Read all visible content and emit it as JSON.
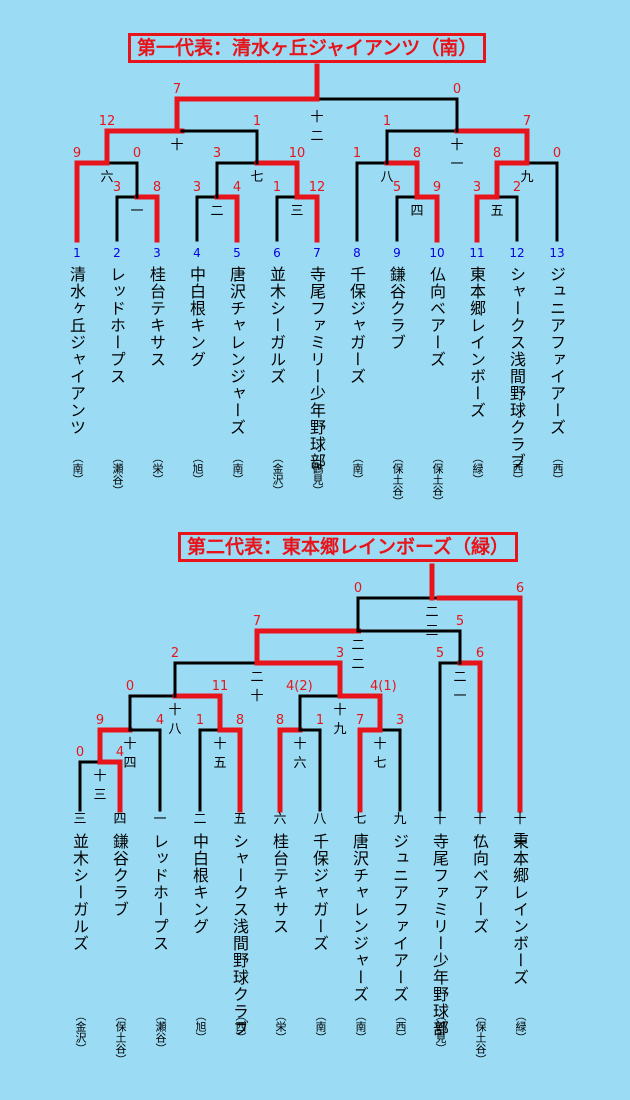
{
  "section1": {
    "title": "第一代表：清水ヶ丘ジャイアンツ（南）",
    "teams": [
      {
        "num": "1",
        "name": "清水ヶ丘ジャイアンツ",
        "dist": "（南）"
      },
      {
        "num": "2",
        "name": "レッドホープス",
        "dist": "（瀬谷）"
      },
      {
        "num": "3",
        "name": "桂台テキサス",
        "dist": "（栄）"
      },
      {
        "num": "4",
        "name": "中白根キング",
        "dist": "（旭）"
      },
      {
        "num": "5",
        "name": "唐沢チャレンジャーズ",
        "dist": "（南）"
      },
      {
        "num": "6",
        "name": "並木シーガルズ",
        "dist": "（金沢）"
      },
      {
        "num": "7",
        "name": "寺尾ファミリー少年野球部",
        "dist": "（鶴見）"
      },
      {
        "num": "8",
        "name": "千保ジャガーズ",
        "dist": "（南）"
      },
      {
        "num": "9",
        "name": "鎌谷クラブ",
        "dist": "（保土谷）"
      },
      {
        "num": "10",
        "name": "仏向ベアーズ",
        "dist": "（保土谷）"
      },
      {
        "num": "11",
        "name": "東本郷レインボーズ",
        "dist": "（緑）"
      },
      {
        "num": "12",
        "name": "シャークス浅間野球クラブ",
        "dist": "（西）"
      },
      {
        "num": "13",
        "name": "ジュニアファイアーズ",
        "dist": "（西）"
      }
    ],
    "matches": [
      {
        "label": "一",
        "scores": [
          "3",
          "8"
        ]
      },
      {
        "label": "二",
        "scores": [
          "3",
          "4"
        ]
      },
      {
        "label": "三",
        "scores": [
          "1",
          "12"
        ]
      },
      {
        "label": "四",
        "scores": [
          "5",
          "9"
        ]
      },
      {
        "label": "五",
        "scores": [
          "3",
          "2"
        ]
      },
      {
        "label": "六",
        "scores": [
          "9",
          "0"
        ]
      },
      {
        "label": "七",
        "scores": [
          "3",
          "10"
        ]
      },
      {
        "label": "八",
        "scores": [
          "1",
          "8"
        ]
      },
      {
        "label": "九",
        "scores": [
          "8",
          "0"
        ]
      },
      {
        "label": "十",
        "scores": [
          "12",
          "1"
        ]
      },
      {
        "label": "十一",
        "scores": [
          "1",
          "7"
        ]
      },
      {
        "label": "十二",
        "scores": [
          "7",
          "0"
        ]
      }
    ]
  },
  "section2": {
    "title": "第二代表：東本郷レインボーズ（緑）",
    "teams": [
      {
        "num": "三",
        "name": "並木シーガルズ",
        "dist": "（金沢）"
      },
      {
        "num": "四",
        "name": "鎌谷クラブ",
        "dist": "（保土谷）"
      },
      {
        "num": "一",
        "name": "レッドホープス",
        "dist": "（瀬谷）"
      },
      {
        "num": "二",
        "name": "中白根キング",
        "dist": "（旭）"
      },
      {
        "num": "五",
        "name": "シャークス浅間野球クラブ",
        "dist": "（西）"
      },
      {
        "num": "六",
        "name": "桂台テキサス",
        "dist": "（栄）"
      },
      {
        "num": "八",
        "name": "千保ジャガーズ",
        "dist": "（南）"
      },
      {
        "num": "七",
        "name": "唐沢チャレンジャーズ",
        "dist": "（南）"
      },
      {
        "num": "九",
        "name": "ジュニアファイアーズ",
        "dist": "（西）"
      },
      {
        "num": "十",
        "name": "寺尾ファミリー少年野球部",
        "dist": "（鶴見）"
      },
      {
        "num": "十一",
        "name": "仏向ベアーズ",
        "dist": "（保土谷）"
      },
      {
        "num": "十二",
        "name": "東本郷レインボーズ",
        "dist": "（緑）"
      }
    ],
    "matches": [
      {
        "label": "十三",
        "scores": [
          "0",
          "4"
        ]
      },
      {
        "label": "十四",
        "scores": [
          "9",
          "4"
        ]
      },
      {
        "label": "十五",
        "scores": [
          "1",
          "8"
        ]
      },
      {
        "label": "十六",
        "scores": [
          "8",
          "1"
        ]
      },
      {
        "label": "十七",
        "scores": [
          "7",
          "3"
        ]
      },
      {
        "label": "十八",
        "scores": [
          "0",
          "11"
        ]
      },
      {
        "label": "十九",
        "scores": [
          "4(2)",
          "4(1)"
        ]
      },
      {
        "label": "二十",
        "scores": [
          "2",
          "3"
        ]
      },
      {
        "label": "二一",
        "scores": [
          "5",
          "6"
        ]
      },
      {
        "label": "二二",
        "scores": [
          "7",
          "5"
        ]
      },
      {
        "label": "二三",
        "scores": [
          "0",
          "6"
        ]
      }
    ]
  },
  "colors": {
    "background": "#9BDCF4",
    "win": "#E8141B",
    "line": "#000000",
    "seed": "#0000E0",
    "score": "#E8141B"
  }
}
